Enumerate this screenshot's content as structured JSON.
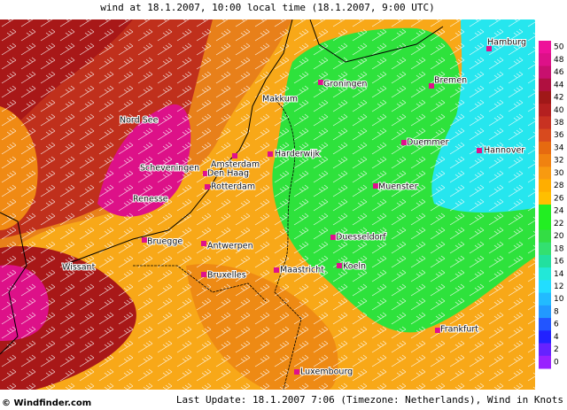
{
  "header": {
    "title": "wind at 18.1.2007, 10:00 local time (18.1.2007, 9:00 UTC)"
  },
  "map": {
    "places": [
      {
        "name": "Hamburg"
      },
      {
        "name": "Bremen"
      },
      {
        "name": "Groningen"
      },
      {
        "name": "Makkum"
      },
      {
        "name": "Nord See"
      },
      {
        "name": "Harderwijk"
      },
      {
        "name": "Amsterdam"
      },
      {
        "name": "Duemmer"
      },
      {
        "name": "Hannover"
      },
      {
        "name": "Scheveningen"
      },
      {
        "name": "Den Haag"
      },
      {
        "name": "Rotterdam"
      },
      {
        "name": "Muenster"
      },
      {
        "name": "Renesse"
      },
      {
        "name": "Duesseldorf"
      },
      {
        "name": "Bruegge"
      },
      {
        "name": "Antwerpen"
      },
      {
        "name": "Wissant"
      },
      {
        "name": "Koeln"
      },
      {
        "name": "Maastricht"
      },
      {
        "name": "Bruxelles"
      },
      {
        "name": "Frankfurt"
      },
      {
        "name": "Luxembourg"
      }
    ]
  },
  "legend": {
    "steps": [
      {
        "value": 50,
        "color": "#ee1199"
      },
      {
        "value": 48,
        "color": "#dd1188"
      },
      {
        "value": 46,
        "color": "#c8106e"
      },
      {
        "value": 44,
        "color": "#b01040"
      },
      {
        "value": 42,
        "color": "#a01818"
      },
      {
        "value": 40,
        "color": "#b42020"
      },
      {
        "value": 38,
        "color": "#c83222"
      },
      {
        "value": 36,
        "color": "#d84a1e"
      },
      {
        "value": 34,
        "color": "#e66a10"
      },
      {
        "value": 32,
        "color": "#f08210"
      },
      {
        "value": 30,
        "color": "#f89a10"
      },
      {
        "value": 28,
        "color": "#ffae00"
      },
      {
        "value": 26,
        "color": "#ffbf00"
      },
      {
        "value": 24,
        "color": "#22ee22"
      },
      {
        "value": 22,
        "color": "#22ee22"
      },
      {
        "value": 20,
        "color": "#33dd44"
      },
      {
        "value": 18,
        "color": "#33e070"
      },
      {
        "value": 16,
        "color": "#22e0a0"
      },
      {
        "value": 14,
        "color": "#22e8d8"
      },
      {
        "value": 12,
        "color": "#22ddff"
      },
      {
        "value": 10,
        "color": "#22bbff"
      },
      {
        "value": 8,
        "color": "#2299ff"
      },
      {
        "value": 6,
        "color": "#2255ff"
      },
      {
        "value": 4,
        "color": "#2222ff"
      },
      {
        "value": 2,
        "color": "#6622ff"
      },
      {
        "value": 0,
        "color": "#9922ff"
      }
    ]
  },
  "footer": {
    "logo": "© Windfinder.com",
    "update": "Last Update: 18.1.2007 7:06 (Timezone: Netherlands), Wind in Knots"
  }
}
